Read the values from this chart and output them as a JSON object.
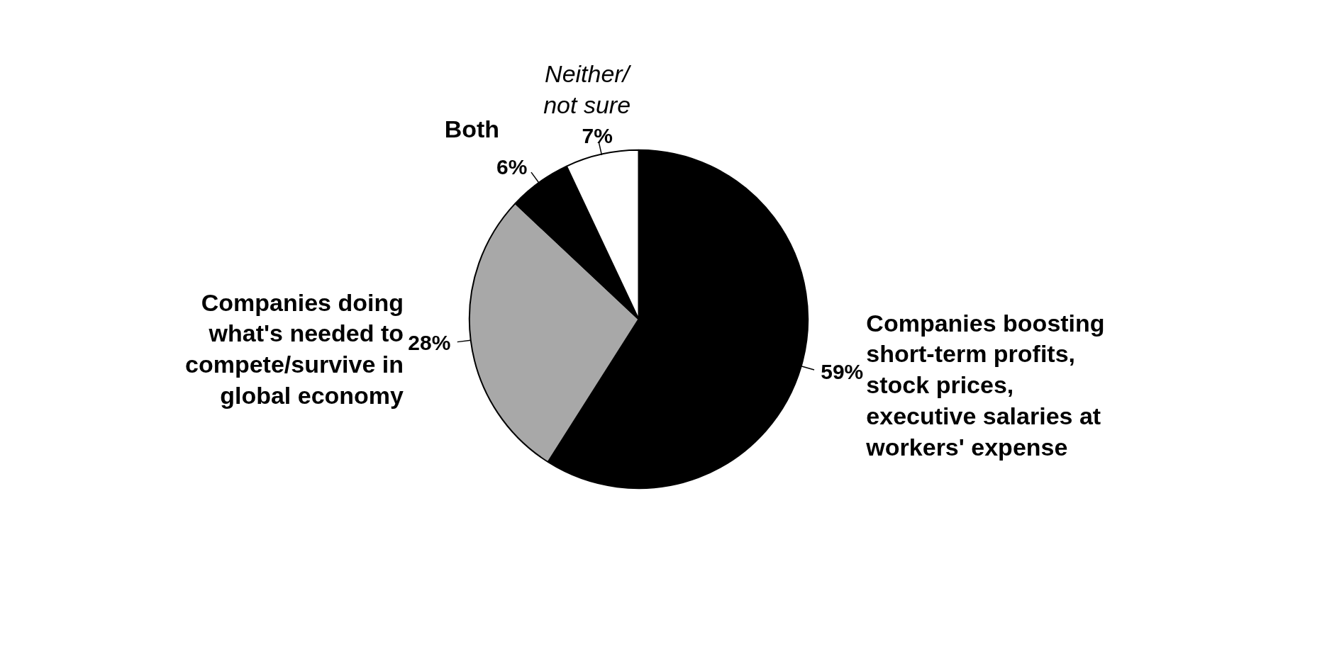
{
  "chart_data": {
    "type": "pie",
    "categories": [
      "Companies boosting\nshort-term profits,\nstock prices,\nexecutive salaries at\nworkers' expense",
      "Companies doing\nwhat's needed to\ncompete/survive in\nglobal economy",
      "Both",
      "Neither/\nnot sure"
    ],
    "values": [
      59,
      28,
      6,
      7
    ],
    "colors": [
      "#000000",
      "#a8a8a8",
      "#000000",
      "#ffffff"
    ],
    "value_labels": [
      "59%",
      "28%",
      "6%",
      "7%"
    ]
  }
}
